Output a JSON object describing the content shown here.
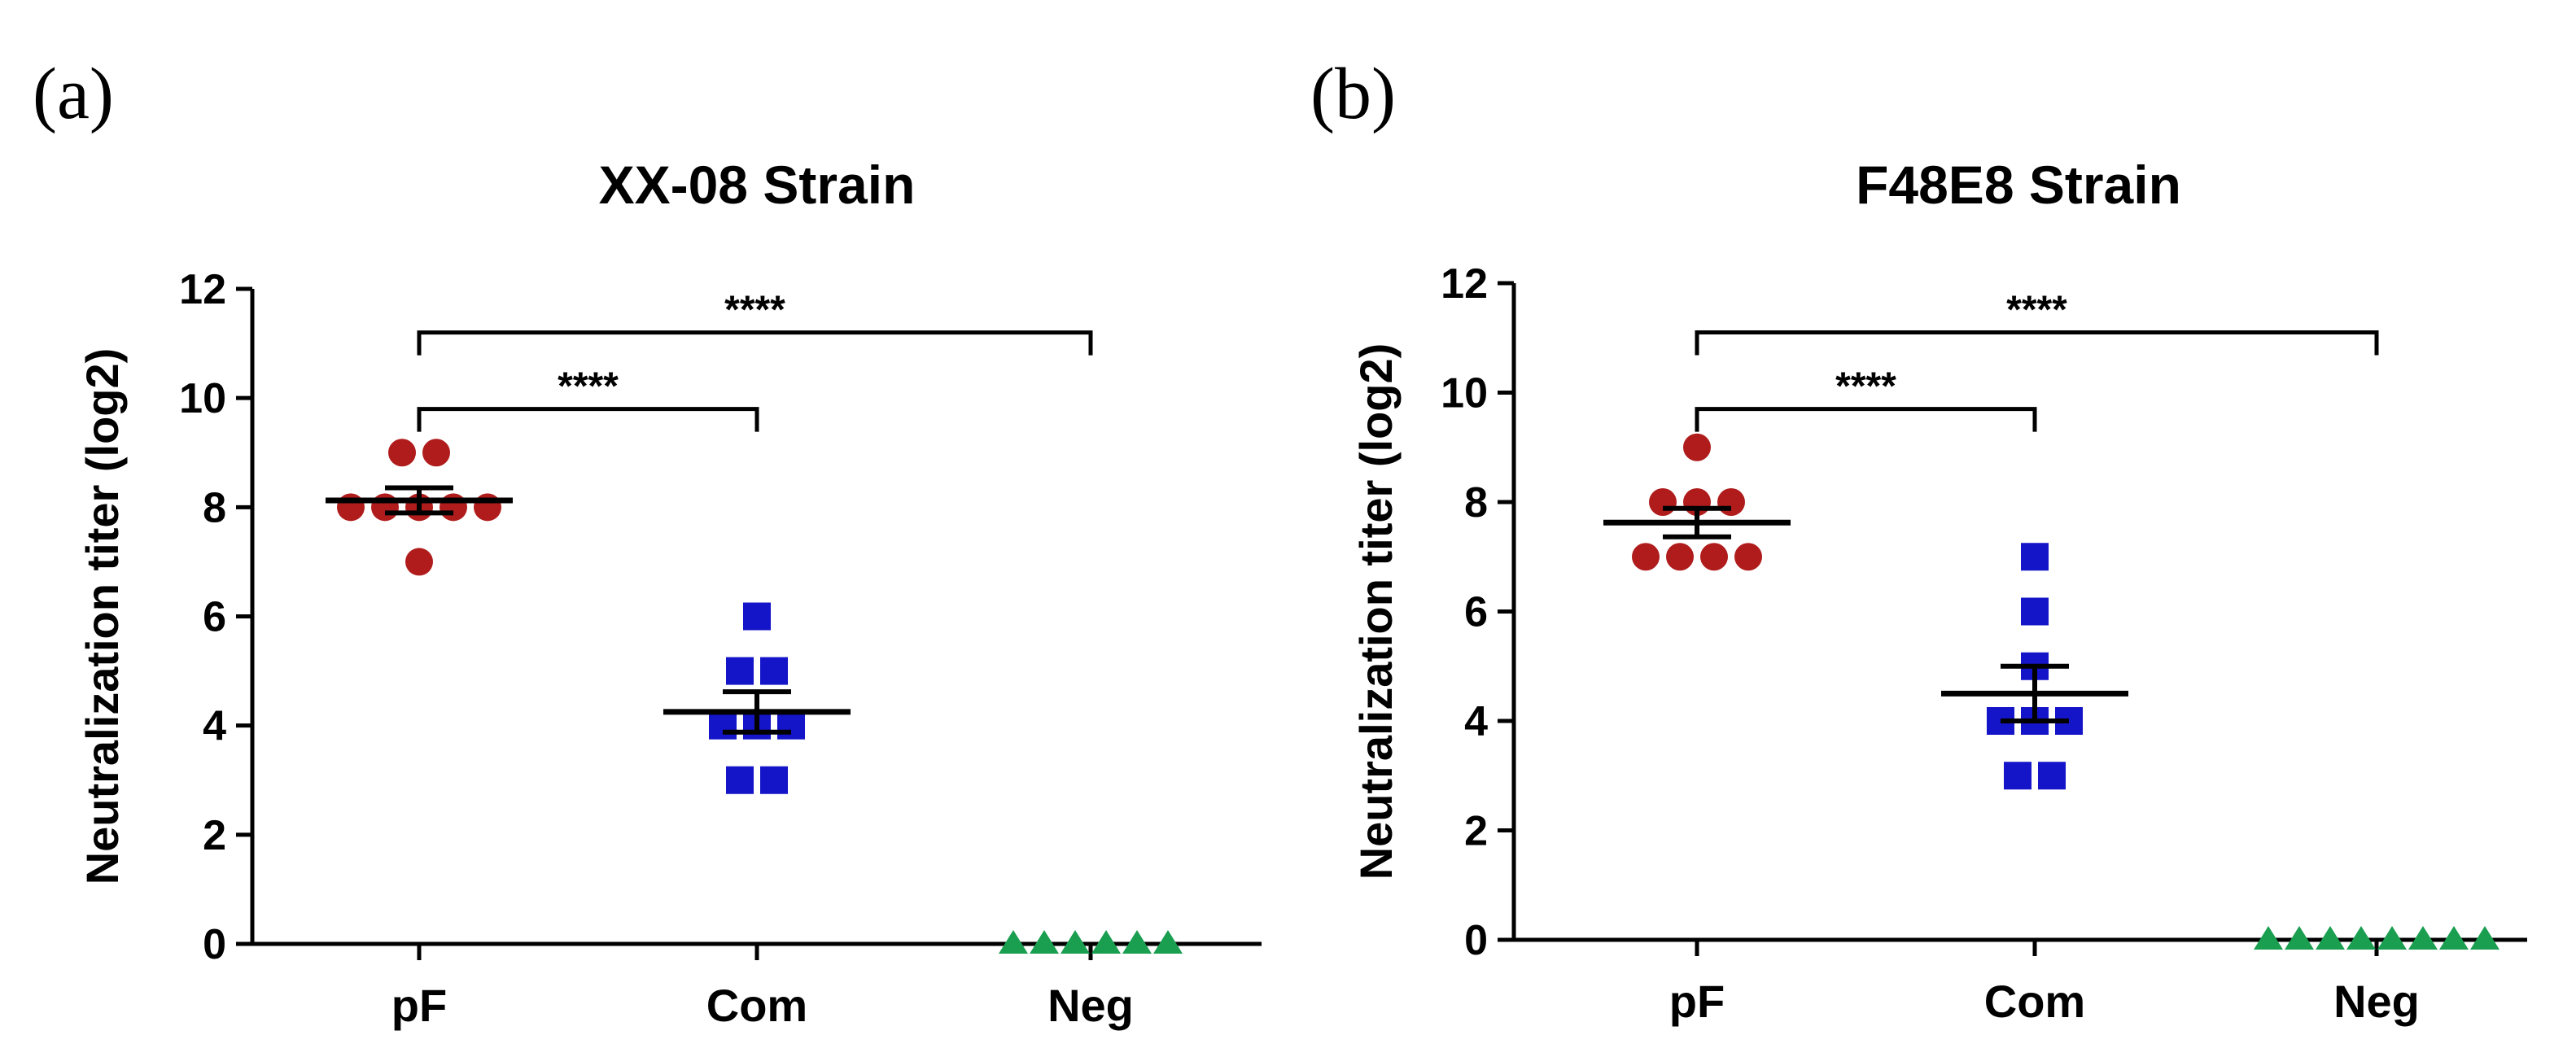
{
  "chart_data": [
    {
      "panel": "(a)",
      "type": "scatter",
      "title": "XX-08 Strain",
      "xlabel": "",
      "ylabel": "Neutralization titer (log2)",
      "ylim": [
        0,
        12
      ],
      "yticks": [
        0,
        2,
        4,
        6,
        8,
        10,
        12
      ],
      "categories": [
        "pF",
        "Com",
        "Neg"
      ],
      "series": [
        {
          "name": "pF",
          "marker": "circle",
          "color": "#b01c1c",
          "values": [
            9,
            9,
            8,
            8,
            8,
            8,
            8,
            7
          ],
          "mean": 8.125,
          "sem": 0.23
        },
        {
          "name": "Com",
          "marker": "square",
          "color": "#1414c8",
          "values": [
            6,
            5,
            5,
            4,
            4,
            4,
            3,
            3
          ],
          "mean": 4.25,
          "sem": 0.37
        },
        {
          "name": "Neg",
          "marker": "triangle",
          "color": "#1a9e50",
          "values": [
            0,
            0,
            0,
            0,
            0,
            0
          ],
          "mean": 0,
          "sem": 0
        }
      ],
      "significance": [
        {
          "from": "pF",
          "to": "Com",
          "label": "****",
          "y": 9.8
        },
        {
          "from": "pF",
          "to": "Neg",
          "label": "****",
          "y": 11.2
        }
      ]
    },
    {
      "panel": "(b)",
      "type": "scatter",
      "title": "F48E8 Strain",
      "xlabel": "",
      "ylabel": "Neutralization titer (log2)",
      "ylim": [
        0,
        12
      ],
      "yticks": [
        0,
        2,
        4,
        6,
        8,
        10,
        12
      ],
      "categories": [
        "pF",
        "Com",
        "Neg"
      ],
      "series": [
        {
          "name": "pF",
          "marker": "circle",
          "color": "#b01c1c",
          "values": [
            9,
            8,
            8,
            8,
            7,
            7,
            7,
            7
          ],
          "mean": 7.625,
          "sem": 0.26
        },
        {
          "name": "Com",
          "marker": "square",
          "color": "#1414c8",
          "values": [
            7,
            6,
            5,
            4,
            4,
            4,
            3,
            3
          ],
          "mean": 4.5,
          "sem": 0.5
        },
        {
          "name": "Neg",
          "marker": "triangle",
          "color": "#1a9e50",
          "values": [
            0,
            0,
            0,
            0,
            0,
            0,
            0,
            0
          ],
          "mean": 0,
          "sem": 0
        }
      ],
      "significance": [
        {
          "from": "pF",
          "to": "Com",
          "label": "****",
          "y": 9.7
        },
        {
          "from": "pF",
          "to": "Neg",
          "label": "****",
          "y": 11.1
        }
      ]
    }
  ]
}
